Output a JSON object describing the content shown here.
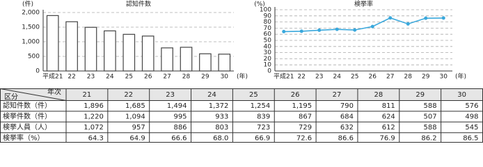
{
  "chart_data": [
    {
      "type": "bar",
      "title": "認知件数",
      "y_unit": "(件)",
      "x_unit": "(年)",
      "categories": [
        "平成21",
        "22",
        "23",
        "24",
        "25",
        "26",
        "27",
        "28",
        "29",
        "30"
      ],
      "values": [
        1896,
        1685,
        1494,
        1372,
        1254,
        1195,
        790,
        811,
        588,
        576
      ],
      "color": "#ffffff",
      "ylim": [
        0,
        2000
      ],
      "yticks": [
        0,
        500,
        {
          "value": 1000,
          "label": "1,000"
        },
        {
          "value": 1500,
          "label": "1,500"
        },
        {
          "value": 2000,
          "label": "2,000"
        }
      ],
      "grid": true
    },
    {
      "type": "line",
      "title": "検挙率",
      "y_unit": "(%)",
      "x_unit": "(年)",
      "categories": [
        "平成21",
        "22",
        "23",
        "24",
        "25",
        "26",
        "27",
        "28",
        "29",
        "30"
      ],
      "values": [
        64.3,
        64.9,
        66.6,
        68.0,
        66.9,
        72.6,
        86.6,
        76.9,
        86.2,
        86.5
      ],
      "color": "#3aa8dc",
      "ylim": [
        0,
        100
      ],
      "yticks": [
        0,
        10,
        20,
        30,
        40,
        50,
        60,
        70,
        80,
        90,
        100
      ],
      "grid": true
    }
  ],
  "table": {
    "corner": [
      "区分",
      "年次"
    ],
    "columns": [
      "21",
      "22",
      "23",
      "24",
      "25",
      "26",
      "27",
      "28",
      "29",
      "30"
    ],
    "rows": [
      [
        "認知件数（件）",
        "1,896",
        "1,685",
        "1,494",
        "1,372",
        "1,254",
        "1,195",
        "790",
        "811",
        "588",
        "576"
      ],
      [
        "検挙件数（件）",
        "1,220",
        "1,094",
        "995",
        "933",
        "839",
        "867",
        "684",
        "624",
        "507",
        "498"
      ],
      [
        "検挙人員（人）",
        "1,072",
        "957",
        "886",
        "803",
        "723",
        "729",
        "632",
        "612",
        "588",
        "545"
      ],
      [
        "検挙率（%）",
        "64.3",
        "64.9",
        "66.6",
        "68.0",
        "66.9",
        "72.6",
        "86.6",
        "76.9",
        "86.2",
        "86.5"
      ]
    ]
  }
}
